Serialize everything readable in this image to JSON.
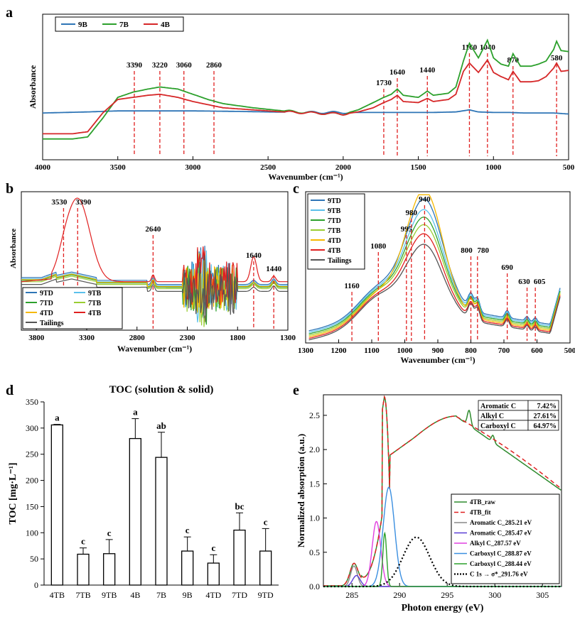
{
  "chart_data": [
    {
      "panel": "a",
      "type": "line",
      "xlabel": "Wavenumber (cm⁻¹)",
      "ylabel": "Absorbance",
      "xlim": [
        4000,
        500
      ],
      "x_reversed": true,
      "x_ticks": [
        "4000",
        "3500",
        "3000",
        "2500",
        "2000",
        "1500",
        "1000",
        "500"
      ],
      "legend": "top-left",
      "annotations": [
        "3390",
        "3220",
        "3060",
        "2860",
        "1730",
        "1640",
        "1440",
        "1160",
        "1040",
        "870",
        "580"
      ],
      "annotation_x": [
        3390,
        3220,
        3060,
        2860,
        1730,
        1640,
        1440,
        1160,
        1040,
        870,
        580
      ],
      "series": [
        {
          "name": "9B",
          "color": "#2e75b6",
          "x": [
            4000,
            3700,
            3500,
            3300,
            3000,
            2700,
            2500,
            2200,
            2000,
            1800,
            1600,
            1400,
            1250,
            1160,
            1100,
            1000,
            900,
            800,
            700,
            600,
            500
          ],
          "y": [
            0.45,
            0.46,
            0.47,
            0.47,
            0.47,
            0.465,
            0.46,
            0.455,
            0.455,
            0.455,
            0.455,
            0.455,
            0.46,
            0.48,
            0.46,
            0.455,
            0.455,
            0.45,
            0.45,
            0.45,
            0.44
          ]
        },
        {
          "name": "7B",
          "color": "#2ca02c",
          "x": [
            4000,
            3800,
            3700,
            3600,
            3500,
            3400,
            3300,
            3220,
            3100,
            3000,
            2900,
            2800,
            2600,
            2400,
            2200,
            2000,
            1900,
            1800,
            1730,
            1680,
            1640,
            1600,
            1500,
            1440,
            1400,
            1300,
            1250,
            1200,
            1160,
            1100,
            1040,
            1000,
            950,
            900,
            870,
            820,
            750,
            700,
            650,
            600,
            580,
            550,
            500
          ],
          "y": [
            0.2,
            0.2,
            0.22,
            0.4,
            0.6,
            0.65,
            0.68,
            0.7,
            0.68,
            0.63,
            0.58,
            0.54,
            0.5,
            0.47,
            0.45,
            0.44,
            0.48,
            0.55,
            0.6,
            0.63,
            0.68,
            0.62,
            0.6,
            0.66,
            0.62,
            0.64,
            0.7,
            0.95,
            1.12,
            0.98,
            1.15,
            0.98,
            0.92,
            0.9,
            1.02,
            0.9,
            0.9,
            0.92,
            0.95,
            1.06,
            1.14,
            1.05,
            1.04
          ]
        },
        {
          "name": "4B",
          "color": "#d62728",
          "x": [
            4000,
            3800,
            3700,
            3600,
            3500,
            3400,
            3300,
            3220,
            3100,
            3000,
            2900,
            2800,
            2600,
            2400,
            2200,
            2000,
            1900,
            1800,
            1730,
            1680,
            1640,
            1600,
            1500,
            1440,
            1400,
            1300,
            1250,
            1200,
            1160,
            1100,
            1040,
            1000,
            950,
            900,
            870,
            820,
            750,
            700,
            650,
            600,
            580,
            550,
            500
          ],
          "y": [
            0.25,
            0.25,
            0.27,
            0.45,
            0.58,
            0.6,
            0.62,
            0.63,
            0.6,
            0.56,
            0.53,
            0.5,
            0.48,
            0.46,
            0.45,
            0.44,
            0.46,
            0.5,
            0.55,
            0.58,
            0.62,
            0.56,
            0.55,
            0.59,
            0.56,
            0.58,
            0.63,
            0.85,
            0.93,
            0.84,
            0.96,
            0.84,
            0.8,
            0.77,
            0.85,
            0.75,
            0.75,
            0.76,
            0.8,
            0.88,
            0.93,
            0.85,
            0.86
          ]
        }
      ]
    },
    {
      "panel": "b",
      "type": "line",
      "xlabel": "Wavenumber (cm⁻¹)",
      "ylabel": "Absorbance",
      "xlim": [
        3950,
        1300
      ],
      "x_reversed": true,
      "x_ticks": [
        "3800",
        "3300",
        "2800",
        "2300",
        "1800",
        "1300"
      ],
      "legend": "bottom-left",
      "annotations": [
        "3530",
        "3390",
        "2640",
        "1640",
        "1440"
      ],
      "annotation_x": [
        3530,
        3390,
        2640,
        1640,
        1440
      ],
      "series": [
        {
          "name": "9TD",
          "color": "#2e75b6"
        },
        {
          "name": "9TB",
          "color": "#5bc0eb"
        },
        {
          "name": "7TD",
          "color": "#2ca02c"
        },
        {
          "name": "7TB",
          "color": "#9acd32"
        },
        {
          "name": "4TD",
          "color": "#f5b800"
        },
        {
          "name": "4TB",
          "color": "#e02020"
        },
        {
          "name": "Tailings",
          "color": "#555555"
        }
      ]
    },
    {
      "panel": "c",
      "type": "line",
      "xlabel": "Wavenumber (cm⁻¹)",
      "xlim": [
        1300,
        500
      ],
      "x_reversed": true,
      "x_ticks": [
        "1300",
        "1200",
        "1100",
        "1000",
        "900",
        "800",
        "700",
        "600",
        "500"
      ],
      "legend": "top-left",
      "annotations": [
        "1160",
        "1080",
        "995",
        "980",
        "940",
        "800",
        "780",
        "690",
        "630",
        "605"
      ],
      "annotation_x": [
        1160,
        1080,
        995,
        980,
        940,
        800,
        780,
        690,
        630,
        605
      ],
      "series": [
        {
          "name": "9TD",
          "color": "#2e75b6",
          "peak": 0.84
        },
        {
          "name": "9TB",
          "color": "#5bc0eb",
          "peak": 0.78
        },
        {
          "name": "7TD",
          "color": "#2ca02c",
          "peak": 0.74
        },
        {
          "name": "7TB",
          "color": "#9acd32",
          "peak": 0.7
        },
        {
          "name": "4TD",
          "color": "#f5b800",
          "peak": 0.94
        },
        {
          "name": "4TB",
          "color": "#e02020",
          "peak": 0.66
        },
        {
          "name": "Tailings",
          "color": "#555555",
          "peak": 0.6
        }
      ]
    },
    {
      "panel": "d",
      "type": "bar",
      "title": "TOC (solution & solid)",
      "ylabel": "TOC [mg·L⁻¹]",
      "ylim": [
        0,
        350
      ],
      "y_ticks": [
        "0",
        "50",
        "100",
        "150",
        "200",
        "250",
        "300",
        "350"
      ],
      "categories": [
        "4TB",
        "7TB",
        "9TB",
        "4B",
        "7B",
        "9B",
        "4TD",
        "7TD",
        "9TD"
      ],
      "values": [
        306,
        59,
        60,
        280,
        244,
        65,
        42,
        105,
        65
      ],
      "errors": [
        1,
        12,
        27,
        38,
        48,
        27,
        16,
        33,
        43
      ],
      "letters": [
        "a",
        "c",
        "c",
        "a",
        "ab",
        "c",
        "c",
        "bc",
        "c"
      ]
    },
    {
      "panel": "e",
      "type": "line",
      "xlabel": "Photon energy (eV)",
      "ylabel": "Normalized absorption (a.u.)",
      "xlim": [
        282,
        307
      ],
      "ylim": [
        0,
        2.8
      ],
      "x_ticks": [
        "285",
        "290",
        "295",
        "300",
        "305"
      ],
      "y_ticks": [
        "0.0",
        "0.5",
        "1.0",
        "1.5",
        "2.0",
        "2.5"
      ],
      "legend": "bottom-right",
      "table": [
        {
          "label": "Aromatic C",
          "value": "7.42%"
        },
        {
          "label": "Alkyl C",
          "value": "27.61%"
        },
        {
          "label": "Carboxyl C",
          "value": "64.97%"
        }
      ],
      "series": [
        {
          "name": "4TB_raw",
          "color": "#2e8b2e"
        },
        {
          "name": "4TB_fit",
          "color": "#e02020"
        },
        {
          "name": "Aromatic C_285.21 eV",
          "color": "#888888",
          "center": 285.21,
          "height": 0.3,
          "width": 0.35
        },
        {
          "name": "Aromatic C_285.47 eV",
          "color": "#5b3fd6",
          "center": 285.47,
          "height": 0.16,
          "width": 0.4
        },
        {
          "name": "Alkyl C_287.57 eV",
          "color": "#e040e0",
          "center": 287.57,
          "height": 0.95,
          "width": 0.45
        },
        {
          "name": "Carboxyl C_288.87 eV",
          "color": "#3b8fe0",
          "center": 288.87,
          "height": 1.45,
          "width": 0.6
        },
        {
          "name": "Carboxyl C_288.44 eV",
          "color": "#2ca02c",
          "center": 288.44,
          "height": 0.78,
          "width": 0.2
        },
        {
          "name": "C 1s → σ*_291.76 eV",
          "color": "#000000",
          "center": 291.76,
          "height": 0.72,
          "width": 1.4
        }
      ]
    }
  ]
}
